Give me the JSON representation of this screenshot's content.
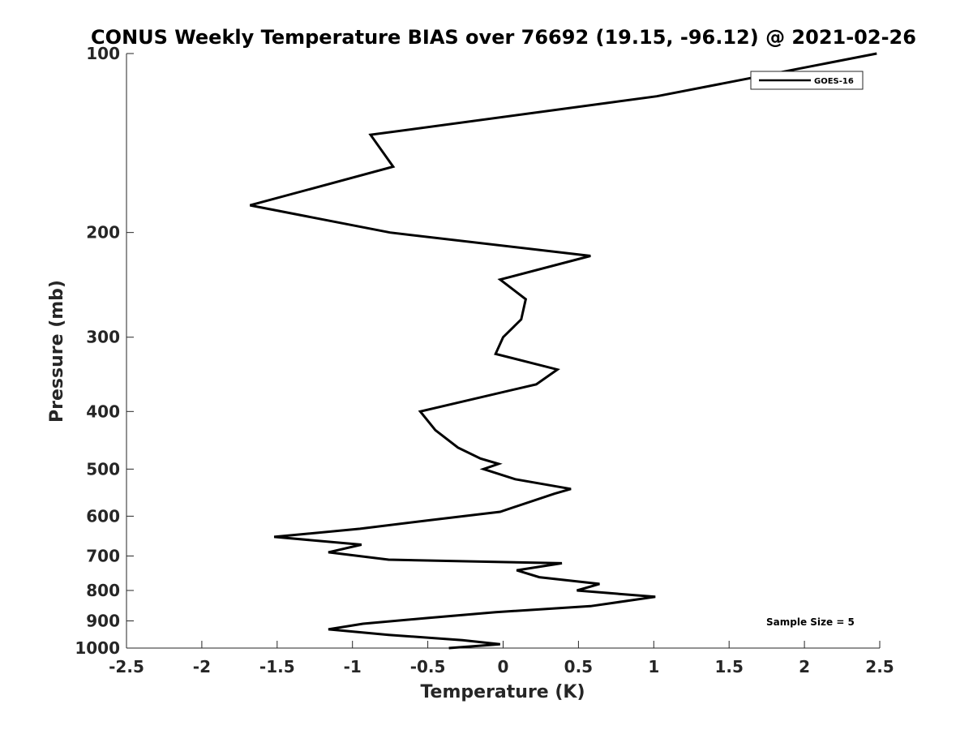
{
  "chart_data": {
    "type": "line",
    "title": "CONUS Weekly Temperature BIAS over 76692 (19.15, -96.12) @ 2021-02-26",
    "xlabel": "Temperature (K)",
    "ylabel": "Pressure (mb)",
    "xlim": [
      -2.5,
      2.5
    ],
    "ylim": [
      1000,
      100
    ],
    "yscale": "log",
    "y_reversed": true,
    "grid": false,
    "legend_position": "top-right",
    "x_ticks": [
      -2.5,
      -2,
      -1.5,
      -1,
      -0.5,
      0,
      0.5,
      1,
      1.5,
      2,
      2.5
    ],
    "x_tick_labels": [
      "-2.5",
      "-2",
      "-1.5",
      "-1",
      "-0.5",
      "0",
      "0.5",
      "1",
      "1.5",
      "2",
      "2.5"
    ],
    "y_ticks": [
      100,
      200,
      300,
      400,
      500,
      600,
      700,
      800,
      900,
      1000
    ],
    "y_tick_labels": [
      "100",
      "200",
      "300",
      "400",
      "500",
      "600",
      "700",
      "800",
      "900",
      "1000"
    ],
    "annotation": "Sample Size = 5",
    "series": [
      {
        "name": "GOES-16",
        "color": "#000000",
        "points": [
          {
            "x": 2.48,
            "p": 100
          },
          {
            "x": 1.02,
            "p": 118
          },
          {
            "x": -0.88,
            "p": 137
          },
          {
            "x": -0.73,
            "p": 155
          },
          {
            "x": -1.68,
            "p": 180
          },
          {
            "x": -0.75,
            "p": 200
          },
          {
            "x": 0.58,
            "p": 219
          },
          {
            "x": -0.02,
            "p": 240
          },
          {
            "x": 0.15,
            "p": 259
          },
          {
            "x": 0.12,
            "p": 280
          },
          {
            "x": 0.0,
            "p": 300
          },
          {
            "x": -0.05,
            "p": 320
          },
          {
            "x": 0.36,
            "p": 340
          },
          {
            "x": 0.22,
            "p": 360
          },
          {
            "x": -0.55,
            "p": 400
          },
          {
            "x": -0.45,
            "p": 430
          },
          {
            "x": -0.3,
            "p": 460
          },
          {
            "x": -0.15,
            "p": 480
          },
          {
            "x": -0.03,
            "p": 490
          },
          {
            "x": -0.13,
            "p": 500
          },
          {
            "x": 0.08,
            "p": 520
          },
          {
            "x": 0.45,
            "p": 540
          },
          {
            "x": 0.34,
            "p": 550
          },
          {
            "x": -0.02,
            "p": 590
          },
          {
            "x": -0.5,
            "p": 610
          },
          {
            "x": -0.95,
            "p": 630
          },
          {
            "x": -1.52,
            "p": 650
          },
          {
            "x": -0.94,
            "p": 670
          },
          {
            "x": -1.16,
            "p": 690
          },
          {
            "x": -0.76,
            "p": 710
          },
          {
            "x": 0.39,
            "p": 720
          },
          {
            "x": 0.09,
            "p": 740
          },
          {
            "x": 0.24,
            "p": 760
          },
          {
            "x": 0.64,
            "p": 780
          },
          {
            "x": 0.49,
            "p": 800
          },
          {
            "x": 1.01,
            "p": 820
          },
          {
            "x": 0.58,
            "p": 850
          },
          {
            "x": -0.05,
            "p": 870
          },
          {
            "x": -0.5,
            "p": 890
          },
          {
            "x": -0.93,
            "p": 910
          },
          {
            "x": -1.16,
            "p": 930
          },
          {
            "x": -0.76,
            "p": 950
          },
          {
            "x": -0.27,
            "p": 970
          },
          {
            "x": -0.02,
            "p": 985
          },
          {
            "x": -0.36,
            "p": 1000
          }
        ]
      }
    ]
  }
}
